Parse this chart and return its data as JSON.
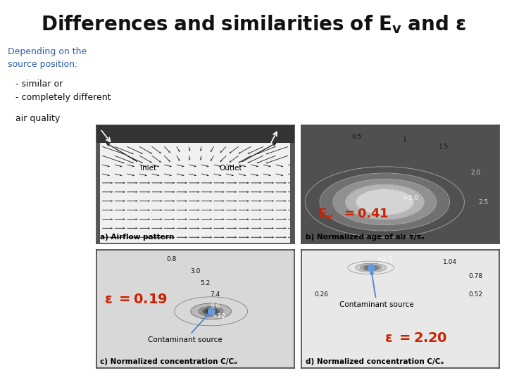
{
  "title": "Differences and similarities of E",
  "title_sub": "v",
  "title_end": " and ε",
  "subtitle1": "Depending on the\nsource position:",
  "subtitle2": "- similar or\n- completely different",
  "subtitle3": "air quality",
  "bg_color": "#ffffff",
  "text_color_blue": "#2E5FA3",
  "text_color_dark": "#111111",
  "text_color_orange": "#cc2200",
  "panel_a_label": "a) Airflow pattern",
  "panel_b_label": "b) Normalized age of air τ/τₙ",
  "panel_c_label": "c) Normalized concentration C/Cₒ",
  "panel_d_label": "d) Normalized concentration C/Cₒ",
  "contaminant_source": "Contaminant source",
  "inlet_label": "Inlet",
  "outlet_label": "Outlet",
  "title_fontsize": 20,
  "subtitle_fontsize": 9,
  "panel_label_fontsize": 7.5
}
